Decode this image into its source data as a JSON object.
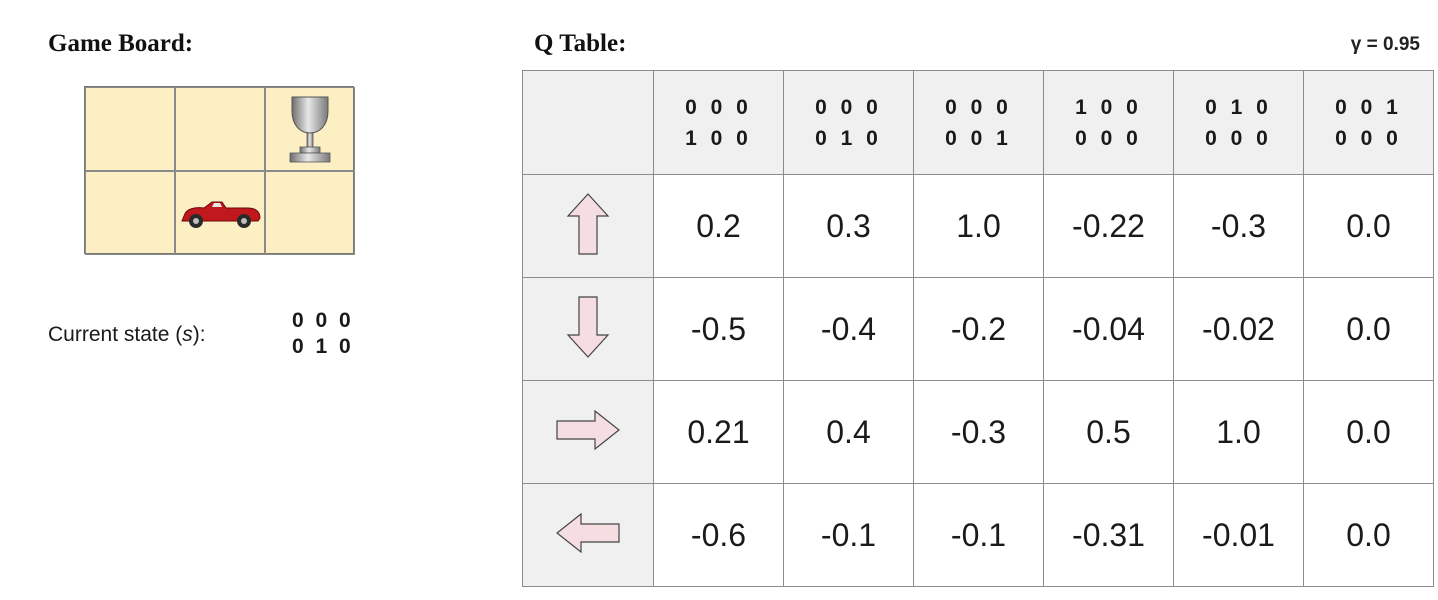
{
  "board": {
    "title": "Game Board:",
    "state_label": "Current state (",
    "state_symbol": "s",
    "state_suffix": "):",
    "state_vector": [
      "0 0 0",
      "0 1 0"
    ],
    "icons": {
      "goal": "trophy-icon",
      "agent": "car-icon"
    }
  },
  "qtable": {
    "title": "Q Table:",
    "gamma": "γ = 0.95",
    "columns": [
      [
        "0 0 0",
        "1 0 0"
      ],
      [
        "0 0 0",
        "0 1 0"
      ],
      [
        "0 0 0",
        "0 0 1"
      ],
      [
        "1 0 0",
        "0 0 0"
      ],
      [
        "0 1 0",
        "0 0 0"
      ],
      [
        "0 0 1",
        "0 0 0"
      ]
    ],
    "rows": [
      {
        "action": "up-arrow-icon",
        "values": [
          "0.2",
          "0.3",
          "1.0",
          "-0.22",
          "-0.3",
          "0.0"
        ]
      },
      {
        "action": "down-arrow-icon",
        "values": [
          "-0.5",
          "-0.4",
          "-0.2",
          "-0.04",
          "-0.02",
          "0.0"
        ]
      },
      {
        "action": "right-arrow-icon",
        "values": [
          "0.21",
          "0.4",
          "-0.3",
          "0.5",
          "1.0",
          "0.0"
        ]
      },
      {
        "action": "left-arrow-icon",
        "values": [
          "-0.6",
          "-0.1",
          "-0.1",
          "-0.31",
          "-0.01",
          "0.0"
        ]
      }
    ]
  },
  "colors": {
    "board_fill": "#fcefc4",
    "arrow_fill": "#f5dde2",
    "header_fill": "#f0f0f0",
    "car": "#c0181c"
  }
}
